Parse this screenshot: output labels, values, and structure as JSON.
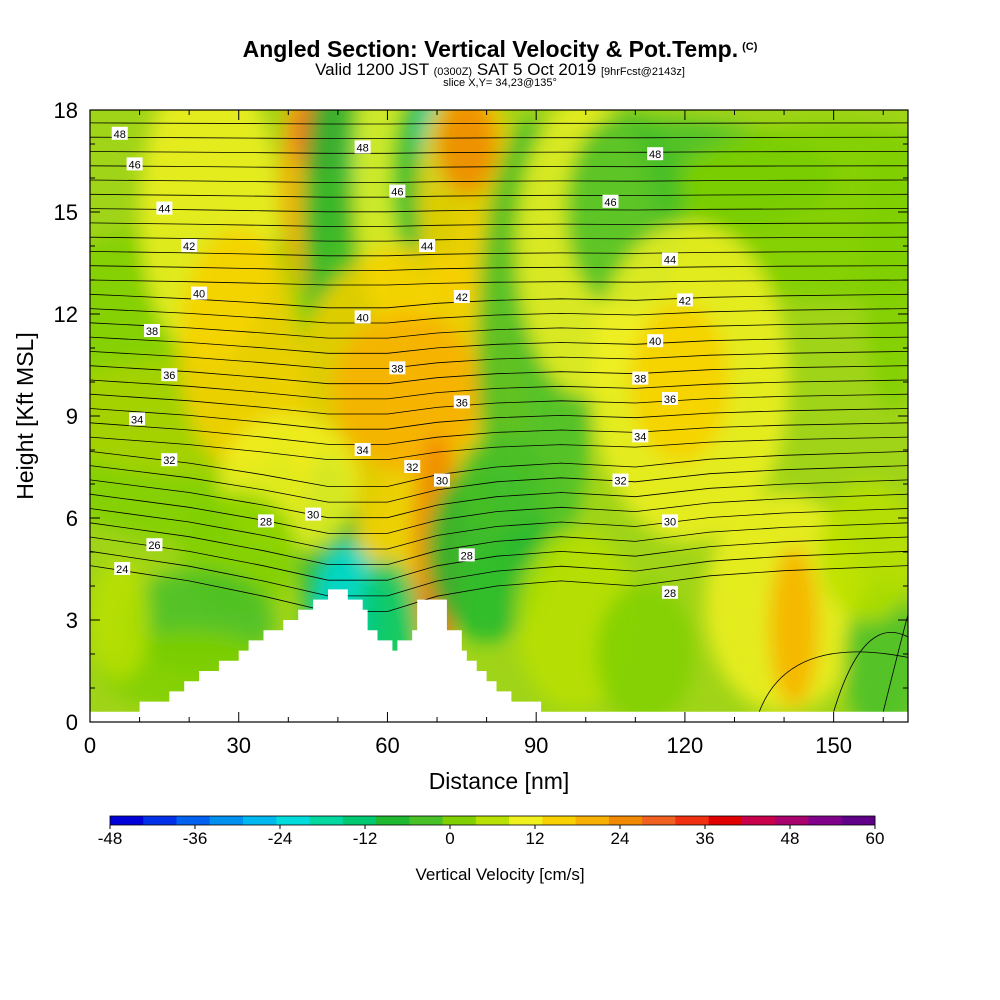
{
  "header": {
    "title": "Angled Section: Vertical Velocity & Pot.Temp.",
    "title_mark": "(C)",
    "valid_time": "Valid 1200 JST",
    "utc": "(0300Z)",
    "date": "SAT 5 Oct 2019",
    "forecast": "[9hrFcst@2143z]",
    "slice": "slice X,Y= 34,23@135°"
  },
  "chart_data": {
    "type": "heatmap",
    "xlabel": "Distance [nm]",
    "ylabel": "Height [Kft MSL]",
    "xlim": [
      0,
      165
    ],
    "ylim": [
      0,
      18
    ],
    "x_ticks": [
      0,
      30,
      60,
      90,
      120,
      150
    ],
    "y_ticks": [
      0,
      3,
      6,
      9,
      12,
      15,
      18
    ],
    "colorbar": {
      "title": "Vertical Velocity [cm/s]",
      "range": [
        -48,
        60
      ],
      "ticks": [
        -48,
        -36,
        -24,
        -12,
        0,
        12,
        24,
        36,
        48,
        60
      ],
      "colors": [
        "#0000d8",
        "#0030e8",
        "#0060f0",
        "#0090f0",
        "#00b8f0",
        "#00dcdc",
        "#00d8a0",
        "#00c870",
        "#20b830",
        "#48c028",
        "#80d000",
        "#b8e000",
        "#f0f020",
        "#f8d000",
        "#f8b000",
        "#f08800",
        "#f06020",
        "#f03010",
        "#e00000",
        "#c8004c",
        "#a8006c",
        "#80008c",
        "#600088"
      ]
    },
    "potential_temperature_contours": {
      "units": "C",
      "labels": [
        {
          "value": 48,
          "x": 6,
          "y": 17.3
        },
        {
          "value": 46,
          "x": 9,
          "y": 16.4
        },
        {
          "value": 44,
          "x": 15,
          "y": 15.1
        },
        {
          "value": 42,
          "x": 20,
          "y": 14.0
        },
        {
          "value": 40,
          "x": 22,
          "y": 12.6
        },
        {
          "value": 38,
          "x": 12.5,
          "y": 11.5
        },
        {
          "value": 36,
          "x": 16,
          "y": 10.2
        },
        {
          "value": 34,
          "x": 9.5,
          "y": 8.9
        },
        {
          "value": 32,
          "x": 16,
          "y": 7.7
        },
        {
          "value": 28,
          "x": 35.5,
          "y": 5.9
        },
        {
          "value": 26,
          "x": 13,
          "y": 5.2
        },
        {
          "value": 24,
          "x": 6.5,
          "y": 4.5
        },
        {
          "value": 48,
          "x": 55,
          "y": 16.9
        },
        {
          "value": 46,
          "x": 62,
          "y": 15.6
        },
        {
          "value": 44,
          "x": 68,
          "y": 14.0
        },
        {
          "value": 42,
          "x": 75,
          "y": 12.5
        },
        {
          "value": 40,
          "x": 55,
          "y": 11.9
        },
        {
          "value": 38,
          "x": 62,
          "y": 10.4
        },
        {
          "value": 36,
          "x": 75,
          "y": 9.4
        },
        {
          "value": 34,
          "x": 55,
          "y": 8.0
        },
        {
          "value": 32,
          "x": 65,
          "y": 7.5
        },
        {
          "value": 30,
          "x": 45,
          "y": 6.1
        },
        {
          "value": 30,
          "x": 71,
          "y": 7.1
        },
        {
          "value": 28,
          "x": 76,
          "y": 4.9
        },
        {
          "value": 48,
          "x": 114,
          "y": 16.7
        },
        {
          "value": 46,
          "x": 105,
          "y": 15.3
        },
        {
          "value": 44,
          "x": 117,
          "y": 13.6
        },
        {
          "value": 42,
          "x": 120,
          "y": 12.4
        },
        {
          "value": 40,
          "x": 114,
          "y": 11.2
        },
        {
          "value": 38,
          "x": 111,
          "y": 10.1
        },
        {
          "value": 36,
          "x": 117,
          "y": 9.5
        },
        {
          "value": 34,
          "x": 111,
          "y": 8.4
        },
        {
          "value": 32,
          "x": 107,
          "y": 7.1
        },
        {
          "value": 30,
          "x": 117,
          "y": 5.9
        },
        {
          "value": 28,
          "x": 117,
          "y": 3.8
        }
      ]
    },
    "terrain_profile": [
      [
        0,
        0.3
      ],
      [
        10,
        0.3
      ],
      [
        10,
        0.6
      ],
      [
        16,
        0.6
      ],
      [
        16,
        0.9
      ],
      [
        19,
        0.9
      ],
      [
        19,
        1.2
      ],
      [
        22,
        1.2
      ],
      [
        22,
        1.5
      ],
      [
        26,
        1.5
      ],
      [
        26,
        1.8
      ],
      [
        30,
        1.8
      ],
      [
        30,
        2.1
      ],
      [
        32,
        2.1
      ],
      [
        32,
        2.4
      ],
      [
        35,
        2.4
      ],
      [
        35,
        2.7
      ],
      [
        39,
        2.7
      ],
      [
        39,
        3.0
      ],
      [
        42,
        3.0
      ],
      [
        42,
        3.3
      ],
      [
        45,
        3.3
      ],
      [
        45,
        3.6
      ],
      [
        48,
        3.6
      ],
      [
        48,
        3.9
      ],
      [
        52,
        3.9
      ],
      [
        52,
        3.6
      ],
      [
        55,
        3.6
      ],
      [
        55,
        3.3
      ],
      [
        56,
        3.3
      ],
      [
        56,
        2.7
      ],
      [
        58,
        2.7
      ],
      [
        58,
        2.4
      ],
      [
        61,
        2.4
      ],
      [
        61,
        2.1
      ],
      [
        62,
        2.1
      ],
      [
        62,
        2.4
      ],
      [
        65,
        2.4
      ],
      [
        65,
        2.7
      ],
      [
        66,
        2.7
      ],
      [
        66,
        3.6
      ],
      [
        72,
        3.6
      ],
      [
        72,
        2.7
      ],
      [
        75,
        2.7
      ],
      [
        75,
        2.1
      ],
      [
        76,
        2.1
      ],
      [
        76,
        1.8
      ],
      [
        78,
        1.8
      ],
      [
        78,
        1.5
      ],
      [
        80,
        1.5
      ],
      [
        80,
        1.2
      ],
      [
        82,
        1.2
      ],
      [
        82,
        0.9
      ],
      [
        85,
        0.9
      ],
      [
        85,
        0.6
      ],
      [
        91,
        0.6
      ],
      [
        91,
        0.3
      ],
      [
        165,
        0.3
      ]
    ],
    "grid": false,
    "legend": "colorbar-bottom"
  }
}
